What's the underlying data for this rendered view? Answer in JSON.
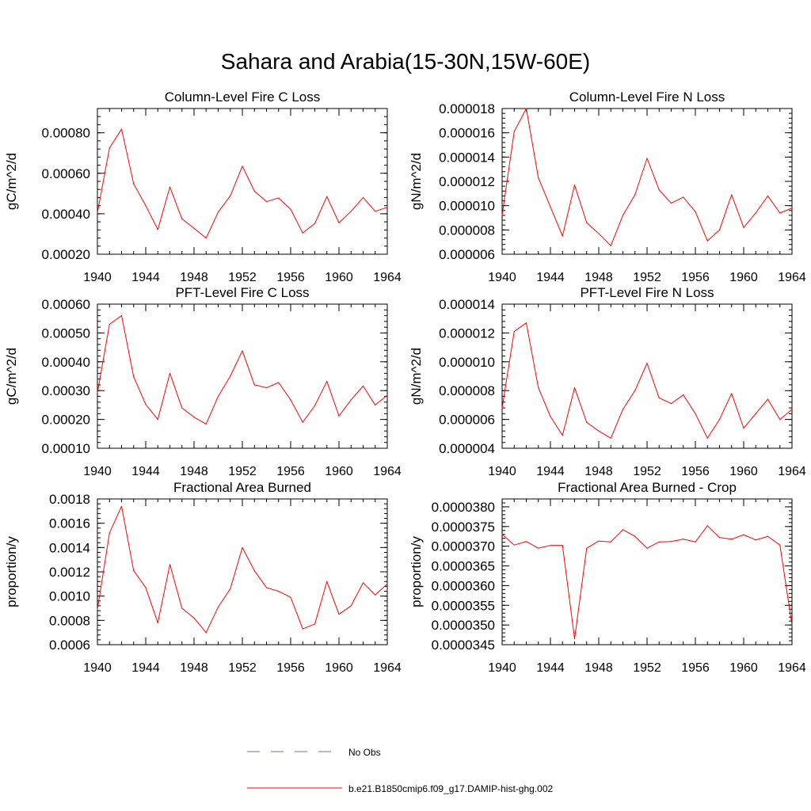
{
  "figure": {
    "title": "Sahara and Arabia(15-30N,15W-60E)"
  },
  "legend": {
    "entries": [
      {
        "label": "No Obs",
        "color": "#6f6fb8",
        "style": "dashed"
      },
      {
        "label": "b.e21.B1850cmip6.f09_g17.DAMIP-hist-ghg.002",
        "color": "#ff0000",
        "style": "solid"
      }
    ]
  },
  "colors": {
    "series": "#ff0000",
    "axis": "#000000"
  },
  "chart_data": [
    {
      "type": "line",
      "title": "Column-Level Fire C Loss",
      "ylabel": "gC/m^2/d",
      "xlim": [
        1940,
        1964
      ],
      "ylim": [
        0.0002,
        0.00092
      ],
      "xticks": [
        1940,
        1944,
        1948,
        1952,
        1956,
        1960,
        1964
      ],
      "xtick_labels": [
        "1940",
        "1944",
        "1948",
        "1952",
        "1956",
        "1960",
        "1964"
      ],
      "yticks": [
        0.0002,
        0.0004,
        0.0006,
        0.0008
      ],
      "ytick_labels": [
        "0.00020",
        "0.00040",
        "0.00060",
        "0.00080"
      ],
      "x": [
        1940,
        1941,
        1942,
        1943,
        1944,
        1945,
        1946,
        1947,
        1948,
        1949,
        1950,
        1951,
        1952,
        1953,
        1954,
        1955,
        1956,
        1957,
        1958,
        1959,
        1960,
        1961,
        1962,
        1963,
        1964
      ],
      "series": [
        {
          "values": [
            0.000405,
            0.000725,
            0.000818,
            0.000548,
            0.00044,
            0.000322,
            0.000532,
            0.000375,
            0.000328,
            0.00028,
            0.000408,
            0.000488,
            0.000635,
            0.000512,
            0.00046,
            0.000478,
            0.000422,
            0.000305,
            0.000352,
            0.000485,
            0.000355,
            0.000412,
            0.00048,
            0.000412,
            0.000432
          ]
        }
      ]
    },
    {
      "type": "line",
      "title": "Column-Level Fire N Loss",
      "ylabel": "gN/m^2/d",
      "xlim": [
        1940,
        1964
      ],
      "ylim": [
        6e-06,
        1.8e-05
      ],
      "xticks": [
        1940,
        1944,
        1948,
        1952,
        1956,
        1960,
        1964
      ],
      "xtick_labels": [
        "1940",
        "1944",
        "1948",
        "1952",
        "1956",
        "1960",
        "1964"
      ],
      "yticks": [
        6e-06,
        8e-06,
        1e-05,
        1.2e-05,
        1.4e-05,
        1.6e-05,
        1.8e-05
      ],
      "ytick_labels": [
        "0.000006",
        "0.000008",
        "0.000010",
        "0.000012",
        "0.000014",
        "0.000016",
        "0.000018"
      ],
      "x": [
        1940,
        1941,
        1942,
        1943,
        1944,
        1945,
        1946,
        1947,
        1948,
        1949,
        1950,
        1951,
        1952,
        1953,
        1954,
        1955,
        1956,
        1957,
        1958,
        1959,
        1960,
        1961,
        1962,
        1963,
        1964
      ],
      "series": [
        {
          "values": [
            9.2e-06,
            1.61e-05,
            1.8e-05,
            1.23e-05,
            9.9e-06,
            7.5e-06,
            1.17e-05,
            8.6e-06,
            7.7e-06,
            6.7e-06,
            9.2e-06,
            1.09e-05,
            1.39e-05,
            1.13e-05,
            1.02e-05,
            1.07e-05,
            9.5e-06,
            7.1e-06,
            8e-06,
            1.09e-05,
            8.2e-06,
            9.4e-06,
            1.08e-05,
            9.4e-06,
            9.8e-06
          ]
        }
      ]
    },
    {
      "type": "line",
      "title": "PFT-Level Fire C Loss",
      "ylabel": "gC/m^2/d",
      "xlim": [
        1940,
        1964
      ],
      "ylim": [
        0.0001,
        0.0006
      ],
      "xticks": [
        1940,
        1944,
        1948,
        1952,
        1956,
        1960,
        1964
      ],
      "xtick_labels": [
        "1940",
        "1944",
        "1948",
        "1952",
        "1956",
        "1960",
        "1964"
      ],
      "yticks": [
        0.0001,
        0.0002,
        0.0003,
        0.0004,
        0.0005,
        0.0006
      ],
      "ytick_labels": [
        "0.00010",
        "0.00020",
        "0.00030",
        "0.00040",
        "0.00050",
        "0.00060"
      ],
      "x": [
        1940,
        1941,
        1942,
        1943,
        1944,
        1945,
        1946,
        1947,
        1948,
        1949,
        1950,
        1951,
        1952,
        1953,
        1954,
        1955,
        1956,
        1957,
        1958,
        1959,
        1960,
        1961,
        1962,
        1963,
        1964
      ],
      "series": [
        {
          "values": [
            0.000292,
            0.00053,
            0.00056,
            0.000348,
            0.000252,
            0.0002,
            0.00036,
            0.00024,
            0.000208,
            0.000184,
            0.00028,
            0.00035,
            0.000438,
            0.00032,
            0.00031,
            0.000328,
            0.000268,
            0.00019,
            0.000248,
            0.000332,
            0.000212,
            0.000268,
            0.000316,
            0.00025,
            0.000284
          ]
        }
      ]
    },
    {
      "type": "line",
      "title": "PFT-Level Fire N Loss",
      "ylabel": "gN/m^2/d",
      "xlim": [
        1940,
        1964
      ],
      "ylim": [
        4e-06,
        1.4e-05
      ],
      "xticks": [
        1940,
        1944,
        1948,
        1952,
        1956,
        1960,
        1964
      ],
      "xtick_labels": [
        "1940",
        "1944",
        "1948",
        "1952",
        "1956",
        "1960",
        "1964"
      ],
      "yticks": [
        4e-06,
        6e-06,
        8e-06,
        1e-05,
        1.2e-05,
        1.4e-05
      ],
      "ytick_labels": [
        "0.000004",
        "0.000006",
        "0.000008",
        "0.000010",
        "0.000012",
        "0.000014"
      ],
      "x": [
        1940,
        1941,
        1942,
        1943,
        1944,
        1945,
        1946,
        1947,
        1948,
        1949,
        1950,
        1951,
        1952,
        1953,
        1954,
        1955,
        1956,
        1957,
        1958,
        1959,
        1960,
        1961,
        1962,
        1963,
        1964
      ],
      "series": [
        {
          "values": [
            6.8e-06,
            1.21e-05,
            1.27e-05,
            8.2e-06,
            6.2e-06,
            4.9e-06,
            8.2e-06,
            5.8e-06,
            5.2e-06,
            4.7e-06,
            6.7e-06,
            8e-06,
            9.9e-06,
            7.5e-06,
            7.1e-06,
            7.7e-06,
            6.4e-06,
            4.7e-06,
            6e-06,
            7.8e-06,
            5.4e-06,
            6.4e-06,
            7.4e-06,
            6e-06,
            6.7e-06
          ]
        }
      ]
    },
    {
      "type": "line",
      "title": "Fractional Area Burned",
      "ylabel": "proportion/y",
      "xlim": [
        1940,
        1964
      ],
      "ylim": [
        0.0006,
        0.0018
      ],
      "xticks": [
        1940,
        1944,
        1948,
        1952,
        1956,
        1960,
        1964
      ],
      "xtick_labels": [
        "1940",
        "1944",
        "1948",
        "1952",
        "1956",
        "1960",
        "1964"
      ],
      "yticks": [
        0.0006,
        0.0008,
        0.001,
        0.0012,
        0.0014,
        0.0016,
        0.0018
      ],
      "ytick_labels": [
        "0.0006",
        "0.0008",
        "0.0010",
        "0.0012",
        "0.0014",
        "0.0016",
        "0.0018"
      ],
      "x": [
        1940,
        1941,
        1942,
        1943,
        1944,
        1945,
        1946,
        1947,
        1948,
        1949,
        1950,
        1951,
        1952,
        1953,
        1954,
        1955,
        1956,
        1957,
        1958,
        1959,
        1960,
        1961,
        1962,
        1963,
        1964
      ],
      "series": [
        {
          "values": [
            0.00089,
            0.00152,
            0.00174,
            0.00121,
            0.00107,
            0.00078,
            0.00126,
            0.0009,
            0.00082,
            0.0007,
            0.00091,
            0.00106,
            0.0014,
            0.00121,
            0.00107,
            0.00104,
            0.00099,
            0.00073,
            0.00077,
            0.00112,
            0.00085,
            0.00092,
            0.00111,
            0.00101,
            0.0011
          ]
        }
      ]
    },
    {
      "type": "line",
      "title": "Fractional Area Burned - Crop",
      "ylabel": "proportion/y",
      "xlim": [
        1940,
        1964
      ],
      "ylim": [
        3.45e-05,
        3.82e-05
      ],
      "xticks": [
        1940,
        1944,
        1948,
        1952,
        1956,
        1960,
        1964
      ],
      "xtick_labels": [
        "1940",
        "1944",
        "1948",
        "1952",
        "1956",
        "1960",
        "1964"
      ],
      "yticks": [
        3.45e-05,
        3.5e-05,
        3.55e-05,
        3.6e-05,
        3.65e-05,
        3.7e-05,
        3.75e-05,
        3.8e-05
      ],
      "ytick_labels": [
        "0.0000345",
        "0.0000350",
        "0.0000355",
        "0.0000360",
        "0.0000365",
        "0.0000370",
        "0.0000375",
        "0.0000380"
      ],
      "x": [
        1940,
        1941,
        1942,
        1943,
        1944,
        1945,
        1946,
        1947,
        1948,
        1949,
        1950,
        1951,
        1952,
        1953,
        1954,
        1955,
        1956,
        1957,
        1958,
        1959,
        1960,
        1961,
        1962,
        1963,
        1964
      ],
      "series": [
        {
          "values": [
            3.73e-05,
            3.703e-05,
            3.712e-05,
            3.695e-05,
            3.702e-05,
            3.702e-05,
            3.465e-05,
            3.695e-05,
            3.713e-05,
            3.711e-05,
            3.742e-05,
            3.725e-05,
            3.695e-05,
            3.711e-05,
            3.712e-05,
            3.718e-05,
            3.711e-05,
            3.752e-05,
            3.722e-05,
            3.718e-05,
            3.729e-05,
            3.716e-05,
            3.725e-05,
            3.703e-05,
            3.5e-05
          ]
        }
      ]
    }
  ]
}
